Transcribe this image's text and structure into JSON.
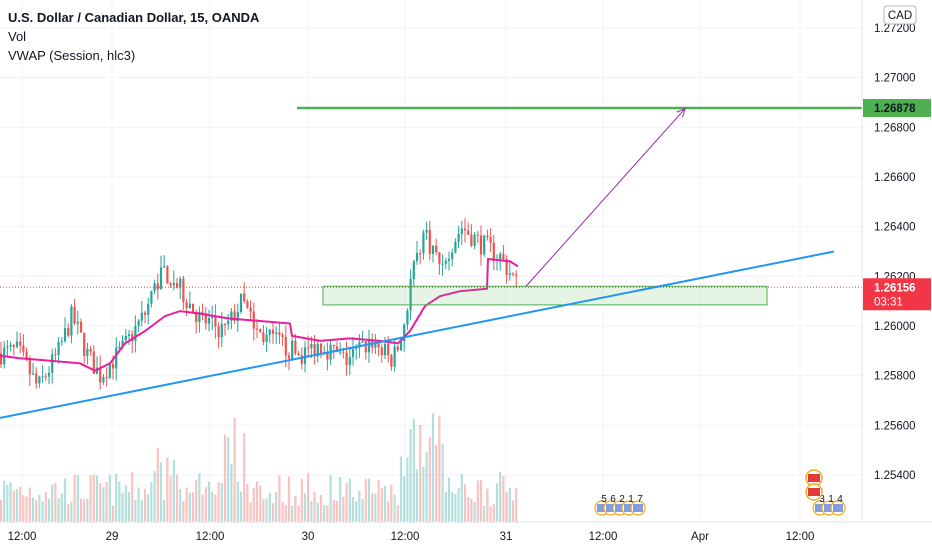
{
  "header": {
    "title": "U.S. Dollar / Canadian Dollar, 15, OANDA",
    "indicators": [
      "Vol",
      "VWAP (Session, hlc3)"
    ]
  },
  "currency_button": "CAD",
  "price_badge": {
    "price": "1.26156",
    "countdown": "03:31",
    "color": "#f23645"
  },
  "target_badge": {
    "price": "1.26878",
    "color": "#4caf50"
  },
  "colors": {
    "up": "#26a69a",
    "down": "#ef5350",
    "vwap": "#e91e9c",
    "trend": "#2196f3",
    "target": "#4caf50",
    "zone": "#4caf50",
    "arrow": "#9c27b0",
    "current": "#f23645"
  },
  "events": {
    "group_left": [
      "5",
      "6",
      "2",
      "1",
      "7"
    ],
    "group_right": [
      "3",
      "1",
      "4"
    ]
  },
  "chart_data": {
    "type": "candlestick",
    "title": "U.S. Dollar / Canadian Dollar, 15, OANDA",
    "y_axis": {
      "ticks": [
        "1.27200",
        "1.27000",
        "1.26800",
        "1.26600",
        "1.26400",
        "1.26200",
        "1.26000",
        "1.25800",
        "1.25600",
        "1.25400"
      ],
      "range": [
        1.253,
        1.2722
      ]
    },
    "x_axis": {
      "ticks": [
        "12:00",
        "29",
        "12:00",
        "30",
        "12:00",
        "31",
        "12:00",
        "Apr",
        "12:00"
      ]
    },
    "current_price": 1.26156,
    "target_price": 1.26878,
    "support_zone": {
      "top": 1.2616,
      "bottom": 1.26085
    },
    "series": [
      {
        "name": "Vol",
        "kind": "histogram"
      },
      {
        "name": "VWAP (Session, hlc3)",
        "kind": "line"
      }
    ],
    "trendline": {
      "from": 1.2563,
      "to": 1.263
    },
    "projection": {
      "from": 1.2616,
      "to": 1.26875
    }
  }
}
